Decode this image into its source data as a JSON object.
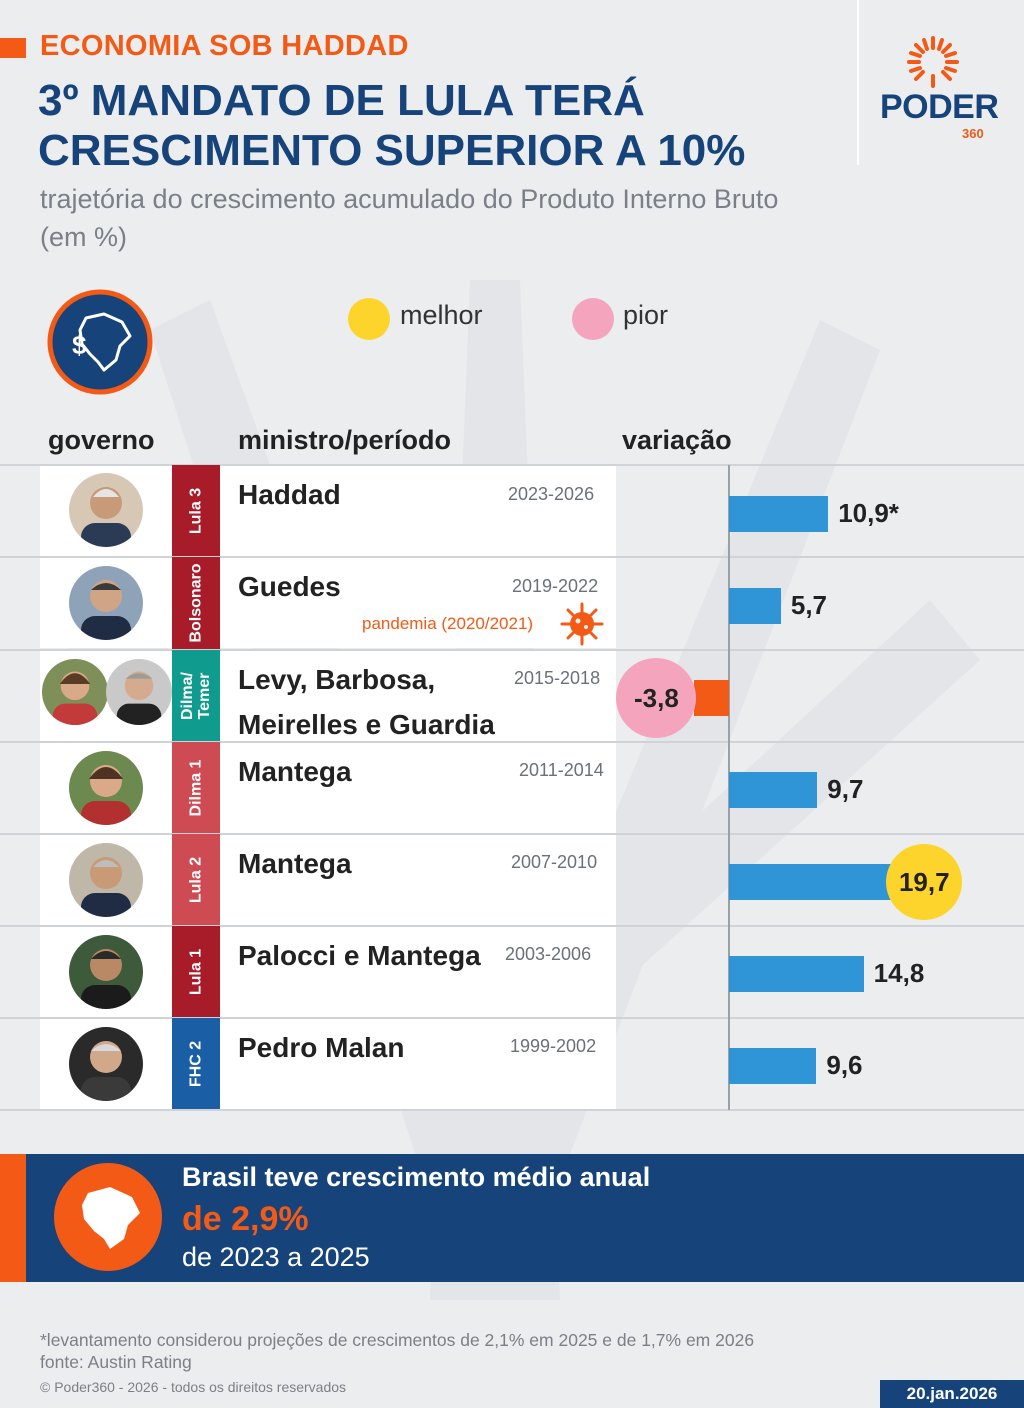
{
  "header": {
    "kicker": "ECONOMIA SOB HADDAD",
    "title": "3º MANDATO DE LULA TERÁ CRESCIMENTO SUPERIOR A 10%",
    "subtitle": "trajetória do crescimento acumulado do Produto Interno Bruto (em %)"
  },
  "logo": {
    "name": "PODER",
    "sub": "360"
  },
  "legend": [
    {
      "label": "melhor",
      "color": "#fdd42b"
    },
    {
      "label": "pior",
      "color": "#f4a5bd"
    }
  ],
  "columns": {
    "governo": "governo",
    "ministro": "ministro/período",
    "variacao": "variação"
  },
  "colors": {
    "bar": "#2f95d7",
    "negative": "#f25a16",
    "accent": "#f25a16",
    "navy": "#15437a"
  },
  "chart_data": {
    "type": "bar",
    "orientation": "horizontal",
    "title": "3º MANDATO DE LULA TERÁ CRESCIMENTO SUPERIOR A 10%",
    "subtitle": "trajetória do crescimento acumulado do Produto Interno Bruto (em %)",
    "rows": [
      {
        "government": "Lula 3",
        "tag_color": "#a81c2a",
        "minister_lines": [
          "Haddad"
        ],
        "period": "2023-2026",
        "value": 10.9,
        "label": "10,9*",
        "highlight": "none",
        "note": ""
      },
      {
        "government": "Bolsonaro",
        "tag_color": "#a81c2a",
        "minister_lines": [
          "Guedes"
        ],
        "period": "2019-2022",
        "value": 5.7,
        "label": "5,7",
        "highlight": "none",
        "note": "pandemia (2020/2021)"
      },
      {
        "government": "Dilma/ Temer",
        "tag_color": "#0f9b8e",
        "minister_lines": [
          "Levy, Barbosa,",
          "Meirelles e Guardia"
        ],
        "period": "2015-2018",
        "value": -3.8,
        "label": "-3,8",
        "highlight": "worst",
        "note": ""
      },
      {
        "government": "Dilma 1",
        "tag_color": "#cf4b54",
        "minister_lines": [
          "Mantega"
        ],
        "period": "2011-2014",
        "value": 9.7,
        "label": "9,7",
        "highlight": "none",
        "note": ""
      },
      {
        "government": "Lula 2",
        "tag_color": "#cf4b54",
        "minister_lines": [
          "Mantega"
        ],
        "period": "2007-2010",
        "value": 19.7,
        "label": "19,7",
        "highlight": "best",
        "note": ""
      },
      {
        "government": "Lula 1",
        "tag_color": "#a81c2a",
        "minister_lines": [
          "Palocci e Mantega"
        ],
        "period": "2003-2006",
        "value": 14.8,
        "label": "14,8",
        "highlight": "none",
        "note": ""
      },
      {
        "government": "FHC 2",
        "tag_color": "#1a5ea5",
        "minister_lines": [
          "Pedro Malan"
        ],
        "period": "1999-2002",
        "value": 9.6,
        "label": "9,6",
        "highlight": "none",
        "note": ""
      }
    ],
    "xlim": [
      -3.8,
      19.7
    ],
    "grid": false
  },
  "summary": {
    "line1": "Brasil teve crescimento médio anual",
    "line2": "de 2,9%",
    "line3": "de 2023 a 2025"
  },
  "footnote": "*levantamento considerou projeções de crescimentos de 2,1% em 2025 e de 1,7% em 2026",
  "source": "fonte: Austin Rating",
  "copyright": "© Poder360 - 2026 - todos os direitos reservados",
  "date": "20.jan.2026"
}
